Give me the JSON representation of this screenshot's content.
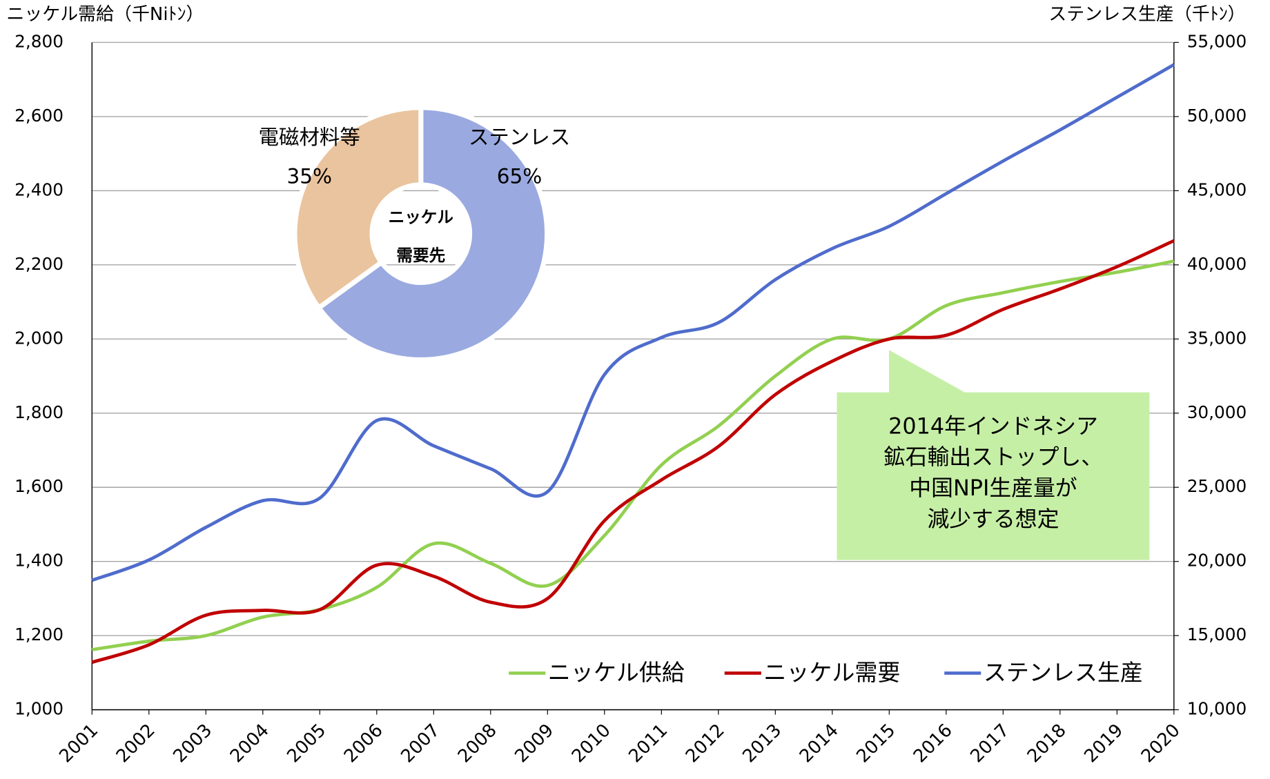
{
  "chart_data": [
    {
      "type": "line",
      "y_label": "ニッケル需給（千Niﾄﾝ）",
      "y2_label": "ステンレス生産（千ﾄﾝ）",
      "categories": [
        "2001",
        "2002",
        "2003",
        "2004",
        "2005",
        "2006",
        "2007",
        "2008",
        "2009",
        "2010",
        "2011",
        "2012",
        "2013",
        "2014",
        "2015",
        "2016",
        "2017",
        "2018",
        "2019",
        "2020"
      ],
      "series": [
        {
          "name": "ニッケル供給",
          "color": "#92d050",
          "values": [
            1162,
            1185,
            1200,
            1250,
            1270,
            1330,
            1448,
            1395,
            1335,
            1470,
            1660,
            1765,
            1900,
            2000,
            2000,
            2090,
            2125,
            2155,
            2180,
            2210
          ]
        },
        {
          "name": "ニッケル需要",
          "color": "#c00000",
          "values": [
            1128,
            1175,
            1255,
            1268,
            1270,
            1390,
            1360,
            1290,
            1300,
            1510,
            1620,
            1710,
            1850,
            1940,
            2000,
            2010,
            2080,
            2135,
            2195,
            2265
          ]
        },
        {
          "name": "ステンレス生産",
          "color": "#4f6ccc",
          "axis": "y2",
          "values": [
            18730,
            20100,
            22300,
            24100,
            24270,
            29500,
            27800,
            26250,
            24700,
            32600,
            35100,
            36100,
            39000,
            41100,
            42600,
            44800,
            47000,
            49100,
            51300,
            53500
          ]
        }
      ],
      "ylim": [
        1000,
        2800
      ],
      "yticks": [
        {
          "value": 1000,
          "label": "1,000"
        },
        {
          "value": 1200,
          "label": "1,200"
        },
        {
          "value": 1400,
          "label": "1,400"
        },
        {
          "value": 1600,
          "label": "1,600"
        },
        {
          "value": 1800,
          "label": "1,800"
        },
        {
          "value": 2000,
          "label": "2,000"
        },
        {
          "value": 2200,
          "label": "2,200"
        },
        {
          "value": 2400,
          "label": "2,400"
        },
        {
          "value": 2600,
          "label": "2,600"
        },
        {
          "value": 2800,
          "label": "2,800"
        }
      ],
      "y2lim": [
        10000,
        55000
      ],
      "y2ticks": [
        {
          "value": 10000,
          "label": "10,000"
        },
        {
          "value": 15000,
          "label": "15,000"
        },
        {
          "value": 20000,
          "label": "20,000"
        },
        {
          "value": 25000,
          "label": "25,000"
        },
        {
          "value": 30000,
          "label": "30,000"
        },
        {
          "value": 35000,
          "label": "35,000"
        },
        {
          "value": 40000,
          "label": "40,000"
        },
        {
          "value": 45000,
          "label": "45,000"
        },
        {
          "value": 50000,
          "label": "50,000"
        },
        {
          "value": 55000,
          "label": "55,000"
        }
      ],
      "grid": true,
      "legend": "bottom-right",
      "annotation": [
        "2014年インドネシア",
        "鉱石輸出ストップし、",
        "中国NPI生産量が",
        "減少する想定"
      ]
    },
    {
      "type": "pie",
      "center_label": [
        "ニッケル",
        "需要先"
      ],
      "categories": [
        "ステンレス",
        "電磁材料等"
      ],
      "values": [
        65,
        35
      ],
      "value_labels": [
        "65%",
        "35%"
      ],
      "colors": [
        "#9aa9e0",
        "#eac49e"
      ]
    }
  ]
}
